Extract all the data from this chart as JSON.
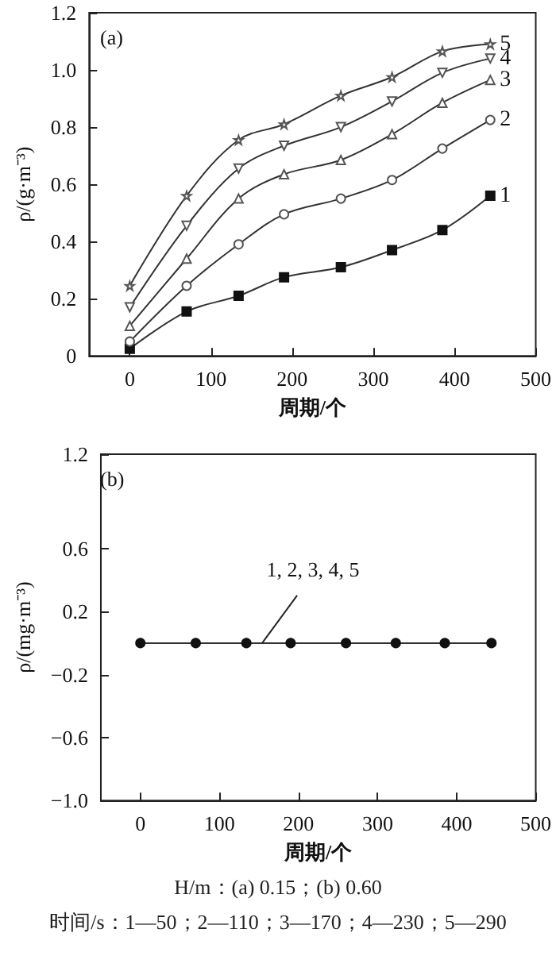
{
  "chart_data": [
    {
      "type": "line",
      "title": "(a)",
      "xlabel": "周期/个",
      "ylabel": "ρ/(g·m⁻³)",
      "x": [
        0,
        70,
        134,
        190,
        260,
        323,
        385,
        444
      ],
      "xlim": [
        -50,
        500
      ],
      "xticks": [
        0,
        100,
        200,
        300,
        400,
        500
      ],
      "ylim": [
        0,
        1.2
      ],
      "yticks": [
        0,
        0.2,
        0.4,
        0.6,
        0.8,
        {
          "value": 1,
          "label": "1.0"
        },
        1.2
      ],
      "grid": false,
      "legend": false,
      "line_style": "solid",
      "series": [
        {
          "name": "1",
          "color": "#111111",
          "marker": "square",
          "values": [
            0.025,
            0.155,
            0.21,
            0.275,
            0.31,
            0.37,
            0.44,
            0.56
          ]
        },
        {
          "name": "2",
          "color": "#555555",
          "marker": "circle",
          "values": [
            0.05,
            0.245,
            0.39,
            0.495,
            0.55,
            0.615,
            0.725,
            0.825
          ]
        },
        {
          "name": "3",
          "color": "#555555",
          "marker": "triangle",
          "values": [
            0.105,
            0.34,
            0.55,
            0.635,
            0.685,
            0.775,
            0.885,
            0.965
          ]
        },
        {
          "name": "4",
          "color": "#555555",
          "marker": "triangle-down",
          "values": [
            0.17,
            0.455,
            0.655,
            0.735,
            0.8,
            0.89,
            0.99,
            1.04
          ]
        },
        {
          "name": "5",
          "color": "#555555",
          "marker": "star",
          "values": [
            0.245,
            0.56,
            0.755,
            0.81,
            0.91,
            0.975,
            1.065,
            1.09
          ]
        }
      ]
    },
    {
      "type": "line",
      "title": "(b)",
      "xlabel": "周期/个",
      "ylabel": "ρ/(mg·m⁻³)",
      "x": [
        0,
        70,
        134,
        190,
        260,
        323,
        385,
        444
      ],
      "xlim": [
        -50,
        500
      ],
      "xticks": [
        0,
        100,
        200,
        300,
        400,
        500
      ],
      "ylim": [
        -1,
        1.2
      ],
      "yticks": [
        {
          "value": -1,
          "label": "−1.0"
        },
        {
          "value": -0.6,
          "label": "−0.6"
        },
        {
          "value": -0.2,
          "label": "−0.2"
        },
        0.2,
        0.6,
        1.2
      ],
      "grid": false,
      "legend": false,
      "line_style": "solid",
      "series": [
        {
          "color": "#111111",
          "marker": "circle",
          "values": [
            0,
            0,
            0,
            0,
            0,
            0,
            0,
            0
          ]
        }
      ],
      "annotations": [
        {
          "text": "1, 2, 3, 4, 5",
          "x": 150,
          "y": 0
        },
        "H/m：(a) 0.15；(b) 0.60",
        "时间/s：1—50；2—110；3—170；4—230；5—290"
      ]
    }
  ]
}
